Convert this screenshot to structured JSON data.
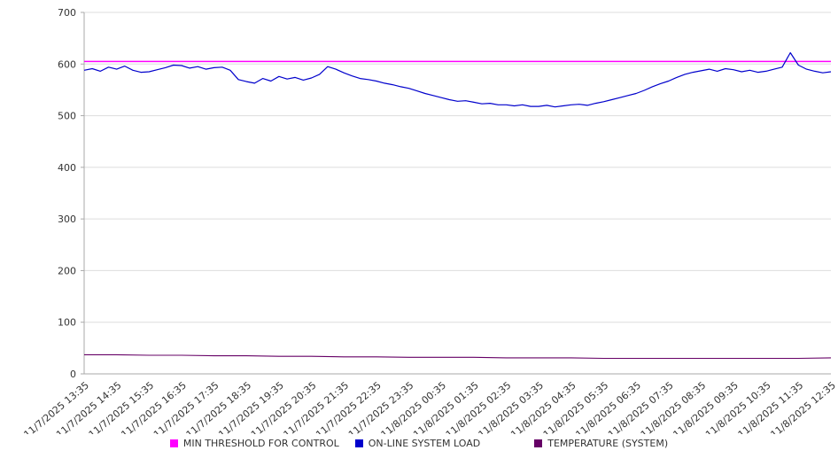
{
  "chart_data": {
    "type": "line",
    "title": "",
    "xlabel": "",
    "ylabel": "",
    "ylim": [
      0,
      700
    ],
    "y_ticks": [
      0,
      100,
      200,
      300,
      400,
      500,
      600,
      700
    ],
    "grid": "horizontal",
    "legend_position": "bottom",
    "x_labels": [
      "11/7/2025 13:35",
      "11/7/2025 14:35",
      "11/7/2025 15:35",
      "11/7/2025 16:35",
      "11/7/2025 17:35",
      "11/7/2025 18:35",
      "11/7/2025 19:35",
      "11/7/2025 20:35",
      "11/7/2025 21:35",
      "11/7/2025 22:35",
      "11/7/2025 23:35",
      "11/8/2025 00:35",
      "11/8/2025 01:35",
      "11/8/2025 02:35",
      "11/8/2025 03:35",
      "11/8/2025 04:35",
      "11/8/2025 05:35",
      "11/8/2025 06:35",
      "11/8/2025 07:35",
      "11/8/2025 08:35",
      "11/8/2025 09:35",
      "11/8/2025 10:35",
      "11/8/2025 11:35",
      "11/8/2025 12:35"
    ],
    "series": [
      {
        "name": "MIN THRESHOLD FOR CONTROL",
        "color": "#ff00ff",
        "kind": "threshold",
        "value": 605,
        "stroke_width": 1.6
      },
      {
        "name": "ON-LINE SYSTEM LOAD",
        "color": "#0000cc",
        "kind": "line",
        "stroke_width": 1.2,
        "values": [
          588,
          591,
          586,
          594,
          590,
          596,
          588,
          584,
          585,
          589,
          593,
          598,
          597,
          592,
          595,
          590,
          593,
          594,
          588,
          570,
          566,
          563,
          572,
          567,
          576,
          571,
          574,
          569,
          573,
          580,
          595,
          590,
          583,
          577,
          572,
          570,
          567,
          563,
          560,
          556,
          553,
          548,
          543,
          539,
          535,
          531,
          528,
          529,
          526,
          523,
          524,
          521,
          521,
          519,
          521,
          518,
          518,
          520,
          517,
          519,
          521,
          522,
          520,
          524,
          527,
          531,
          535,
          539,
          543,
          549,
          556,
          562,
          567,
          574,
          580,
          584,
          587,
          590,
          586,
          591,
          589,
          585,
          588,
          584,
          586,
          590,
          594,
          622,
          598,
          590,
          586,
          583,
          585
        ]
      },
      {
        "name": "TEMPERATURE (SYSTEM)",
        "color": "#660066",
        "kind": "line",
        "stroke_width": 1.1,
        "values": [
          37,
          37,
          36,
          36,
          35,
          35,
          34,
          34,
          33,
          33,
          32,
          32,
          32,
          31,
          31,
          31,
          30,
          30,
          30,
          30,
          30,
          30,
          30,
          31
        ]
      }
    ],
    "colors": {
      "grid": "#dddddd",
      "axis": "#aaaaaa",
      "text": "#333333",
      "background": "#ffffff"
    }
  },
  "legend": {
    "items": [
      {
        "label": "MIN THRESHOLD FOR CONTROL",
        "color": "#ff00ff"
      },
      {
        "label": "ON-LINE SYSTEM LOAD",
        "color": "#0000cc"
      },
      {
        "label": "TEMPERATURE (SYSTEM)",
        "color": "#660066"
      }
    ]
  }
}
